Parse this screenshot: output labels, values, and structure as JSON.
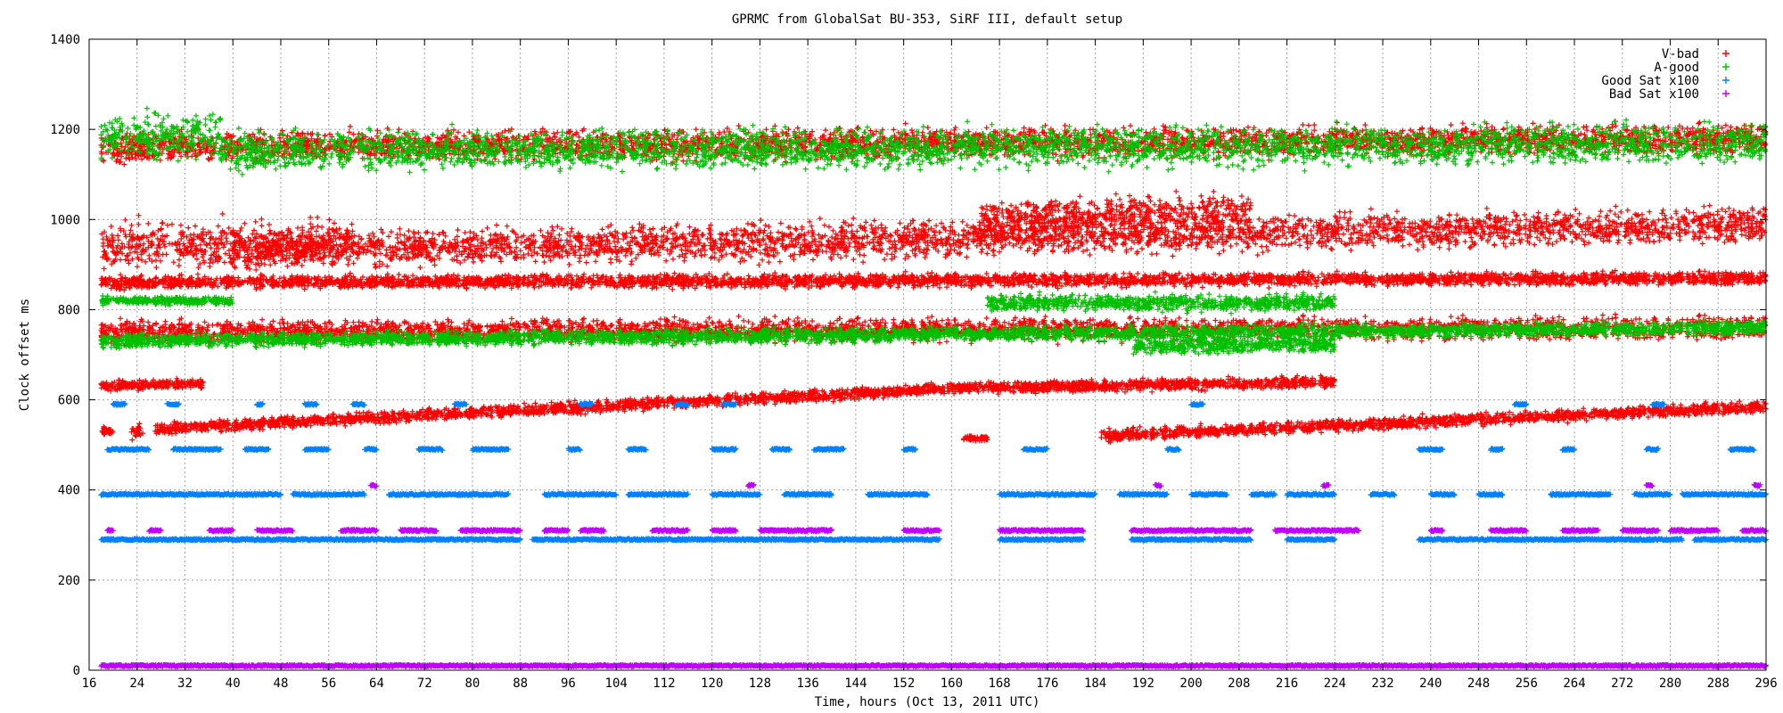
{
  "chart_data": {
    "type": "scatter",
    "title": "GPRMC from GlobalSat BU-353, SiRF III, default setup",
    "xlabel": "Time, hours (Oct 13, 2011 UTC)",
    "ylabel": "Clock offset ms",
    "xlim": [
      16,
      296
    ],
    "ylim": [
      0,
      1400
    ],
    "x_ticks": [
      16,
      24,
      32,
      40,
      48,
      56,
      64,
      72,
      80,
      88,
      96,
      104,
      112,
      120,
      128,
      136,
      144,
      152,
      160,
      168,
      176,
      184,
      192,
      200,
      208,
      216,
      224,
      232,
      240,
      248,
      256,
      264,
      272,
      280,
      288,
      296
    ],
    "y_ticks": [
      0,
      200,
      400,
      600,
      800,
      1000,
      1200,
      1400
    ],
    "grid": true,
    "legend_position": "top-right",
    "series": [
      {
        "name": "V-bad",
        "color": "#ff0000",
        "marker": "plus",
        "segments": [
          {
            "x0": 18,
            "x1": 20,
            "y0": 530,
            "y1": 530,
            "spread": 15
          },
          {
            "x0": 23,
            "x1": 25,
            "y0": 525,
            "y1": 535,
            "spread": 20
          },
          {
            "x0": 27,
            "x1": 160,
            "y0": 535,
            "y1": 625,
            "spread": 18
          },
          {
            "x0": 160,
            "x1": 224,
            "y0": 625,
            "y1": 640,
            "spread": 18
          },
          {
            "x0": 162,
            "x1": 166,
            "y0": 515,
            "y1": 515,
            "spread": 8
          },
          {
            "x0": 185,
            "x1": 296,
            "y0": 520,
            "y1": 585,
            "spread": 18
          },
          {
            "x0": 18,
            "x1": 35,
            "y0": 630,
            "y1": 635,
            "spread": 15
          },
          {
            "x0": 18,
            "x1": 296,
            "y0": 750,
            "y1": 760,
            "spread": 35
          },
          {
            "x0": 18,
            "x1": 60,
            "y0": 940,
            "y1": 950,
            "spread": 70
          },
          {
            "x0": 40,
            "x1": 296,
            "y0": 930,
            "y1": 990,
            "spread": 55
          },
          {
            "x0": 165,
            "x1": 210,
            "y0": 1000,
            "y1": 1020,
            "spread": 55
          },
          {
            "x0": 18,
            "x1": 296,
            "y0": 1160,
            "y1": 1180,
            "spread": 45
          },
          {
            "x0": 18,
            "x1": 296,
            "y0": 860,
            "y1": 870,
            "spread": 20
          }
        ]
      },
      {
        "name": "A-good",
        "color": "#00c000",
        "marker": "plus",
        "segments": [
          {
            "x0": 18,
            "x1": 38,
            "y0": 1180,
            "y1": 1190,
            "spread": 70
          },
          {
            "x0": 38,
            "x1": 296,
            "y0": 1150,
            "y1": 1170,
            "spread": 60
          },
          {
            "x0": 18,
            "x1": 296,
            "y0": 730,
            "y1": 760,
            "spread": 22
          },
          {
            "x0": 18,
            "x1": 40,
            "y0": 820,
            "y1": 820,
            "spread": 12
          },
          {
            "x0": 166,
            "x1": 224,
            "y0": 815,
            "y1": 815,
            "spread": 25
          },
          {
            "x0": 190,
            "x1": 224,
            "y0": 720,
            "y1": 725,
            "spread": 25
          }
        ]
      },
      {
        "name": "Good Sat x100",
        "color": "#0080ff",
        "marker": "plus",
        "levels": [
          {
            "y": 590,
            "x_ranges": [
              [
                20,
                22
              ],
              [
                29,
                31
              ],
              [
                44,
                45
              ],
              [
                52,
                54
              ],
              [
                60,
                62
              ],
              [
                77,
                79
              ],
              [
                98,
                100
              ],
              [
                114,
                116
              ],
              [
                122,
                124
              ],
              [
                200,
                202
              ],
              [
                254,
                256
              ],
              [
                277,
                279
              ]
            ]
          },
          {
            "y": 490,
            "x_ranges": [
              [
                19,
                26
              ],
              [
                30,
                38
              ],
              [
                42,
                46
              ],
              [
                52,
                56
              ],
              [
                62,
                64
              ],
              [
                71,
                75
              ],
              [
                80,
                86
              ],
              [
                96,
                98
              ],
              [
                106,
                109
              ],
              [
                120,
                124
              ],
              [
                130,
                133
              ],
              [
                137,
                142
              ],
              [
                152,
                154
              ],
              [
                172,
                176
              ],
              [
                196,
                198
              ],
              [
                238,
                242
              ],
              [
                250,
                252
              ],
              [
                262,
                264
              ],
              [
                276,
                278
              ],
              [
                290,
                294
              ]
            ]
          },
          {
            "y": 390,
            "x_ranges": [
              [
                18,
                48
              ],
              [
                50,
                62
              ],
              [
                66,
                86
              ],
              [
                92,
                104
              ],
              [
                106,
                116
              ],
              [
                120,
                128
              ],
              [
                132,
                140
              ],
              [
                146,
                156
              ],
              [
                168,
                184
              ],
              [
                188,
                196
              ],
              [
                200,
                206
              ],
              [
                210,
                214
              ],
              [
                216,
                224
              ],
              [
                230,
                234
              ],
              [
                240,
                244
              ],
              [
                248,
                252
              ],
              [
                260,
                270
              ],
              [
                274,
                280
              ],
              [
                282,
                296
              ]
            ]
          },
          {
            "y": 290,
            "x_ranges": [
              [
                18,
                88
              ],
              [
                90,
                158
              ],
              [
                168,
                182
              ],
              [
                190,
                210
              ],
              [
                216,
                224
              ],
              [
                238,
                282
              ],
              [
                284,
                296
              ]
            ]
          }
        ]
      },
      {
        "name": "Bad Sat x100",
        "color": "#c000ff",
        "marker": "plus",
        "levels": [
          {
            "y": 410,
            "x_ranges": [
              [
                63,
                64
              ],
              [
                126,
                127
              ],
              [
                194,
                195
              ],
              [
                222,
                223
              ],
              [
                276,
                277
              ],
              [
                294,
                295
              ]
            ]
          },
          {
            "y": 310,
            "x_ranges": [
              [
                19,
                20
              ],
              [
                26,
                28
              ],
              [
                36,
                40
              ],
              [
                44,
                50
              ],
              [
                58,
                64
              ],
              [
                68,
                74
              ],
              [
                78,
                88
              ],
              [
                92,
                96
              ],
              [
                98,
                102
              ],
              [
                110,
                116
              ],
              [
                120,
                124
              ],
              [
                128,
                140
              ],
              [
                152,
                158
              ],
              [
                168,
                182
              ],
              [
                190,
                210
              ],
              [
                214,
                228
              ],
              [
                240,
                242
              ],
              [
                250,
                256
              ],
              [
                262,
                268
              ],
              [
                272,
                278
              ],
              [
                280,
                288
              ],
              [
                292,
                296
              ]
            ]
          },
          {
            "y": 10,
            "x_ranges": [
              [
                18,
                296
              ]
            ]
          }
        ]
      }
    ]
  }
}
